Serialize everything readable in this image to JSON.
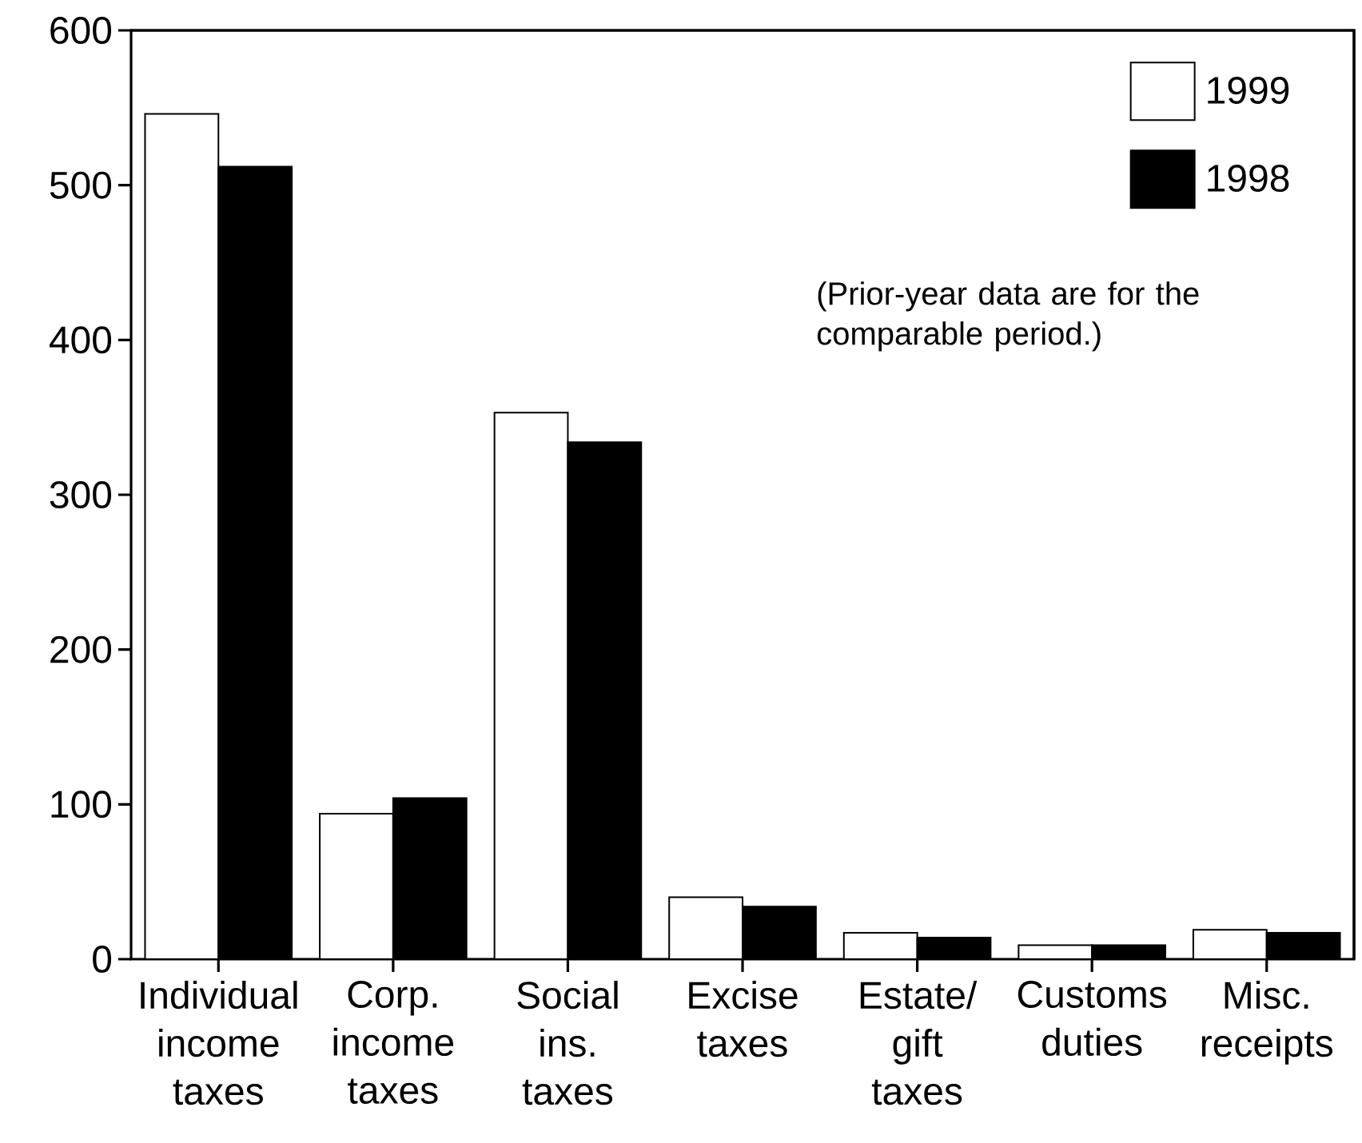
{
  "chart_data": {
    "type": "bar",
    "categories": [
      "Individual income taxes",
      "Corp. income taxes",
      "Social ins. taxes",
      "Excise taxes",
      "Estate/ gift taxes",
      "Customs duties",
      "Misc. receipts"
    ],
    "series": [
      {
        "name": "1999",
        "color": "#ffffff",
        "values": [
          546,
          94,
          353,
          40,
          17,
          9,
          19
        ]
      },
      {
        "name": "1998",
        "color": "#000000",
        "values": [
          512,
          104,
          334,
          34,
          14,
          9,
          17
        ]
      }
    ],
    "ylim": [
      0,
      600
    ],
    "yticks": [
      0,
      100,
      200,
      300,
      400,
      500,
      600
    ],
    "legend": "top right",
    "annotations": [
      "(Prior-year data are for the comparable period.)"
    ]
  }
}
